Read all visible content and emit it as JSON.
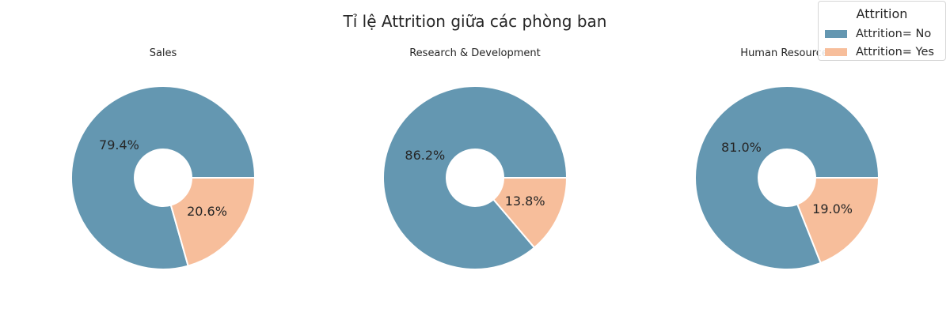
{
  "chart_data": {
    "type": "pie",
    "title": "Tỉ lệ Attrition giữa các phòng ban",
    "legend": {
      "title": "Attrition",
      "placement": "top-right",
      "entries": [
        "Attrition= No",
        "Attrition= Yes"
      ]
    },
    "colors": [
      "#6497b1",
      "#f7be9b"
    ],
    "charts": [
      {
        "title": "Sales",
        "slices": [
          {
            "label": "Attrition= No",
            "value": 79.4,
            "text": "79.4%"
          },
          {
            "label": "Attrition= Yes",
            "value": 20.6,
            "text": "20.6%"
          }
        ]
      },
      {
        "title": "Research & Development",
        "slices": [
          {
            "label": "Attrition= No",
            "value": 86.2,
            "text": "86.2%"
          },
          {
            "label": "Attrition= Yes",
            "value": 13.8,
            "text": "13.8%"
          }
        ]
      },
      {
        "title": "Human Resources",
        "slices": [
          {
            "label": "Attrition= No",
            "value": 81.0,
            "text": "81.0%"
          },
          {
            "label": "Attrition= Yes",
            "value": 19.0,
            "text": "19.0%"
          }
        ]
      }
    ]
  }
}
